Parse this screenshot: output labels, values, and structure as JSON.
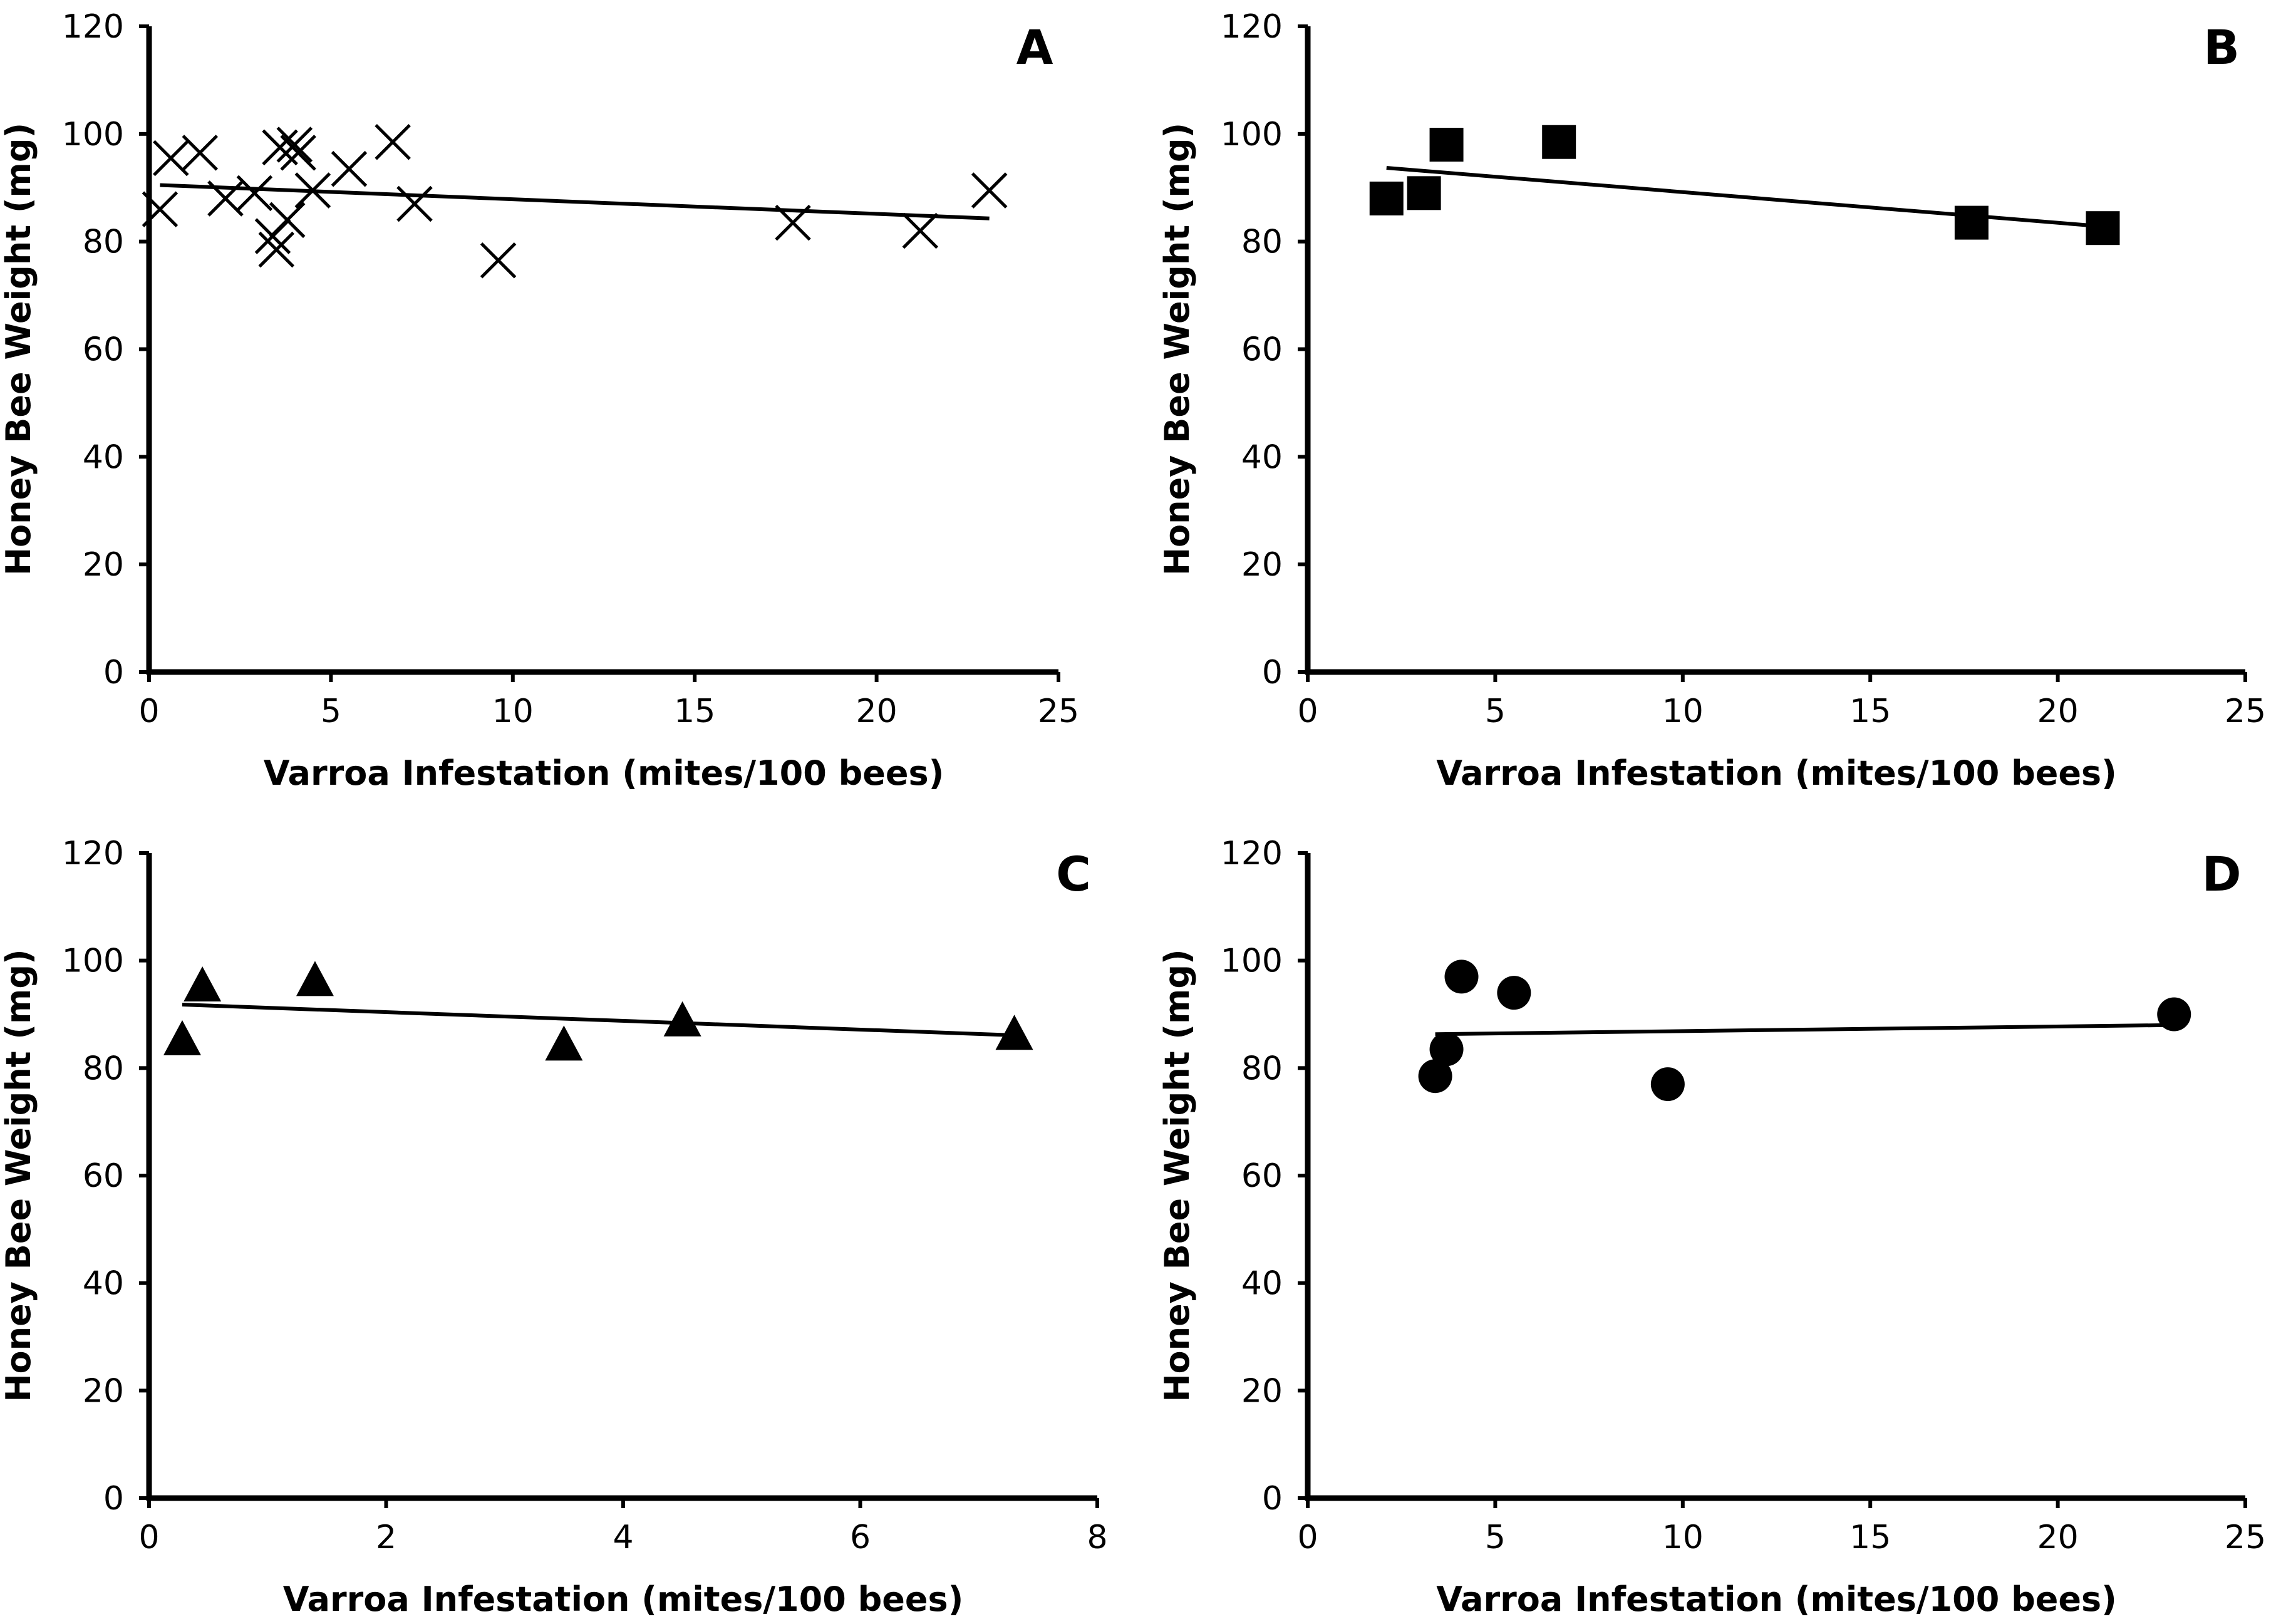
{
  "figure": {
    "background": "#ffffff",
    "ink": "#000000"
  },
  "chart_data": [
    {
      "panel": "A",
      "type": "scatter",
      "marker": "x",
      "xlabel": "Varroa Infestation (mites/100 bees)",
      "ylabel": "Honey Bee Weight (mg)",
      "xlim": [
        0,
        25
      ],
      "ylim": [
        0,
        120
      ],
      "xticks": [
        0,
        5,
        10,
        15,
        20,
        25
      ],
      "yticks": [
        0,
        20,
        40,
        60,
        80,
        100,
        120
      ],
      "grid": false,
      "points": [
        {
          "x": 0.3,
          "y": 86
        },
        {
          "x": 0.6,
          "y": 95.5
        },
        {
          "x": 1.4,
          "y": 96.5
        },
        {
          "x": 2.1,
          "y": 88
        },
        {
          "x": 2.9,
          "y": 89
        },
        {
          "x": 3.4,
          "y": 81
        },
        {
          "x": 3.5,
          "y": 78.5
        },
        {
          "x": 3.6,
          "y": 97.5
        },
        {
          "x": 3.8,
          "y": 84
        },
        {
          "x": 4.0,
          "y": 98
        },
        {
          "x": 4.1,
          "y": 96.5
        },
        {
          "x": 4.5,
          "y": 89.5
        },
        {
          "x": 5.5,
          "y": 93.5
        },
        {
          "x": 6.7,
          "y": 98.5
        },
        {
          "x": 7.3,
          "y": 87
        },
        {
          "x": 9.6,
          "y": 76.5
        },
        {
          "x": 17.7,
          "y": 83.5
        },
        {
          "x": 21.2,
          "y": 82
        },
        {
          "x": 23.1,
          "y": 89.5
        }
      ],
      "trendline": {
        "x": [
          0.3,
          23.1
        ],
        "y": [
          90.5,
          84.3
        ]
      }
    },
    {
      "panel": "B",
      "type": "scatter",
      "marker": "square",
      "xlabel": "Varroa Infestation (mites/100 bees)",
      "ylabel": "Honey Bee Weight (mg)",
      "xlim": [
        0,
        25
      ],
      "ylim": [
        0,
        120
      ],
      "xticks": [
        0,
        5,
        10,
        15,
        20,
        25
      ],
      "yticks": [
        0,
        20,
        40,
        60,
        80,
        100,
        120
      ],
      "grid": false,
      "points": [
        {
          "x": 2.1,
          "y": 88
        },
        {
          "x": 3.1,
          "y": 89
        },
        {
          "x": 3.7,
          "y": 98
        },
        {
          "x": 6.7,
          "y": 98.5
        },
        {
          "x": 17.7,
          "y": 83.5
        },
        {
          "x": 21.2,
          "y": 82.5
        }
      ],
      "trendline": {
        "x": [
          2.1,
          21.2
        ],
        "y": [
          93.7,
          82.8
        ]
      }
    },
    {
      "panel": "C",
      "type": "scatter",
      "marker": "triangle",
      "xlabel": "Varroa Infestation (mites/100 bees)",
      "ylabel": "Honey Bee Weight (mg)",
      "xlim": [
        0,
        8
      ],
      "ylim": [
        0,
        120
      ],
      "xticks": [
        0,
        2,
        4,
        6,
        8
      ],
      "yticks": [
        0,
        20,
        40,
        60,
        80,
        100,
        120
      ],
      "grid": false,
      "points": [
        {
          "x": 0.28,
          "y": 85
        },
        {
          "x": 0.45,
          "y": 95
        },
        {
          "x": 1.4,
          "y": 96
        },
        {
          "x": 3.5,
          "y": 84
        },
        {
          "x": 4.5,
          "y": 88.5
        },
        {
          "x": 7.3,
          "y": 86
        }
      ],
      "trendline": {
        "x": [
          0.28,
          7.3
        ],
        "y": [
          91.8,
          86.1
        ]
      }
    },
    {
      "panel": "D",
      "type": "scatter",
      "marker": "circle",
      "xlabel": "Varroa Infestation (mites/100 bees)",
      "ylabel": "Honey Bee Weight (mg)",
      "xlim": [
        0,
        25
      ],
      "ylim": [
        0,
        120
      ],
      "xticks": [
        0,
        5,
        10,
        15,
        20,
        25
      ],
      "yticks": [
        0,
        20,
        40,
        60,
        80,
        100,
        120
      ],
      "grid": false,
      "points": [
        {
          "x": 3.4,
          "y": 78.5
        },
        {
          "x": 3.7,
          "y": 83.5
        },
        {
          "x": 4.1,
          "y": 97
        },
        {
          "x": 5.5,
          "y": 94
        },
        {
          "x": 9.6,
          "y": 77
        },
        {
          "x": 23.1,
          "y": 90
        }
      ],
      "trendline": {
        "x": [
          3.4,
          23.1
        ],
        "y": [
          86.3,
          88
        ]
      }
    }
  ]
}
